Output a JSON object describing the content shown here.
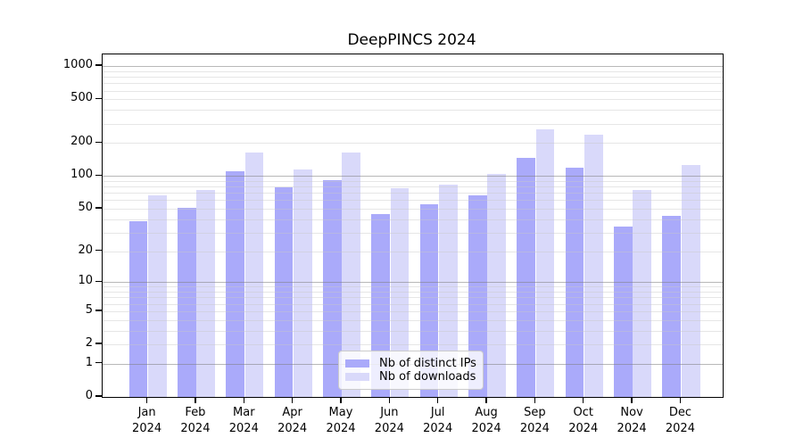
{
  "title": "DeepPINCS 2024",
  "chart_data": {
    "type": "bar",
    "title": "DeepPINCS 2024",
    "categories": [
      {
        "month": "Jan",
        "year": "2024"
      },
      {
        "month": "Feb",
        "year": "2024"
      },
      {
        "month": "Mar",
        "year": "2024"
      },
      {
        "month": "Apr",
        "year": "2024"
      },
      {
        "month": "May",
        "year": "2024"
      },
      {
        "month": "Jun",
        "year": "2024"
      },
      {
        "month": "Jul",
        "year": "2024"
      },
      {
        "month": "Aug",
        "year": "2024"
      },
      {
        "month": "Sep",
        "year": "2024"
      },
      {
        "month": "Oct",
        "year": "2024"
      },
      {
        "month": "Nov",
        "year": "2024"
      },
      {
        "month": "Dec",
        "year": "2024"
      }
    ],
    "series": [
      {
        "name": "Nb of distinct IPs",
        "color": "#aaaafa",
        "values": [
          38,
          51,
          110,
          79,
          92,
          45,
          55,
          66,
          146,
          118,
          34,
          43
        ]
      },
      {
        "name": "Nb of downloads",
        "color": "#d9d9fa",
        "values": [
          66,
          75,
          165,
          115,
          163,
          77,
          84,
          105,
          268,
          240,
          75,
          127
        ]
      }
    ],
    "yscale": "log1p",
    "ylim": [
      0,
      1277
    ],
    "yticks": [
      0,
      1,
      2,
      5,
      10,
      20,
      50,
      100,
      200,
      500,
      1000
    ],
    "major_gridlines": [
      1,
      10,
      100,
      1000
    ],
    "grid": true,
    "legend_position": "lower center",
    "xlabel": "",
    "ylabel": ""
  }
}
